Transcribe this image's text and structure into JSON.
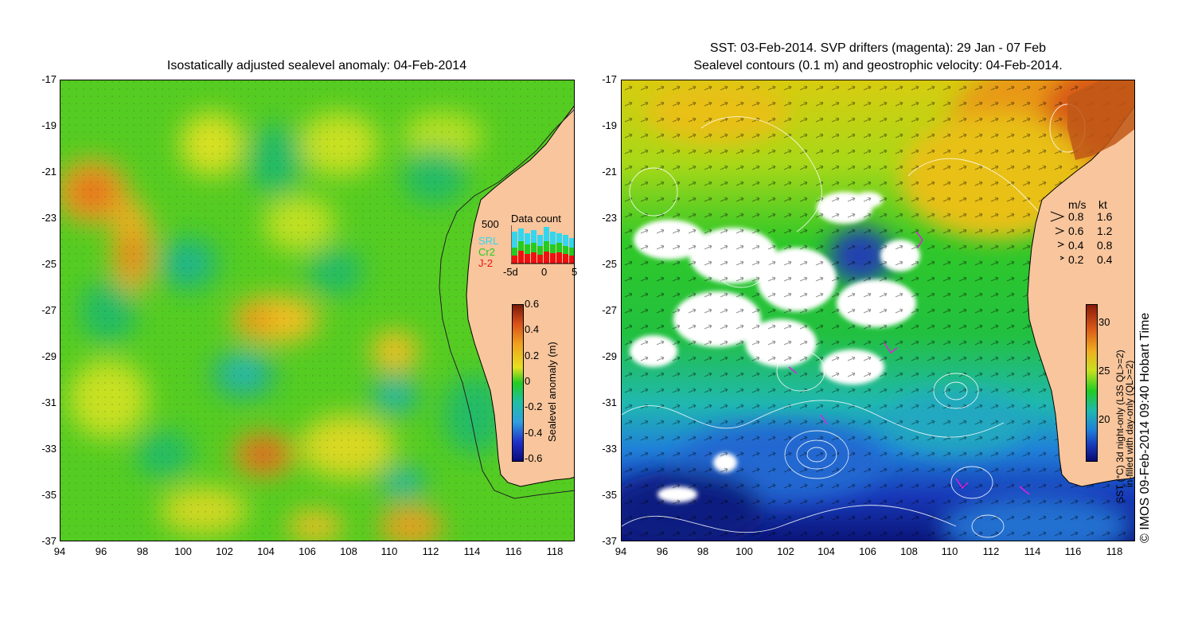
{
  "left_map": {
    "title": "Isostatically adjusted sealevel anomaly: 04-Feb-2014",
    "y_ticks": [
      "-17",
      "-19",
      "-21",
      "-23",
      "-25",
      "-27",
      "-29",
      "-31",
      "-33",
      "-35",
      "-37"
    ],
    "x_ticks": [
      "94",
      "96",
      "98",
      "100",
      "102",
      "104",
      "106",
      "108",
      "110",
      "112",
      "114",
      "116",
      "118"
    ],
    "colorbar": {
      "label": "Sealevel anomaly (m)",
      "ticks": [
        "0.6",
        "0.4",
        "0.2",
        "0",
        "-0.2",
        "-0.4",
        "-0.6"
      ],
      "range": [
        -0.6,
        0.6
      ]
    },
    "data_count": {
      "title": "Data count",
      "y_max_label": "500",
      "x_ticks": [
        "-5d",
        "0",
        "5"
      ],
      "legend": [
        {
          "label": "SRL",
          "color": "#33d6ee"
        },
        {
          "label": "Cr2",
          "color": "#22cc22"
        },
        {
          "label": "J-2",
          "color": "#ee1111"
        }
      ]
    }
  },
  "right_map": {
    "title_line1": "SST: 03-Feb-2014. SVP drifters (magenta): 29 Jan - 07 Feb",
    "title_line2": "Sealevel contours (0.1 m) and geostrophic velocity: 04-Feb-2014.",
    "y_ticks": [
      "-17",
      "-19",
      "-21",
      "-23",
      "-25",
      "-27",
      "-29",
      "-31",
      "-33",
      "-35",
      "-37"
    ],
    "x_ticks": [
      "94",
      "96",
      "98",
      "100",
      "102",
      "104",
      "106",
      "108",
      "110",
      "112",
      "114",
      "116",
      "118"
    ],
    "velocity_legend": {
      "header_ms": "m/s",
      "header_kt": "kt",
      "rows": [
        {
          "ms": "0.8",
          "kt": "1.6"
        },
        {
          "ms": "0.6",
          "kt": "1.2"
        },
        {
          "ms": "0.4",
          "kt": "0.8"
        },
        {
          "ms": "0.2",
          "kt": "0.4"
        }
      ]
    },
    "colorbar": {
      "ticks": [
        "30",
        "25",
        "20"
      ],
      "label_line1": "SST (°C) 3d night-only (L3S QL>=2)",
      "label_line2": "in-filled with day-only (QL>=2)"
    }
  },
  "credit": "© IMOS 09-Feb-2014 09:40 Hobart Time",
  "colors": {
    "land": "#f8c59c",
    "ocean_mid": "#22cc22"
  }
}
